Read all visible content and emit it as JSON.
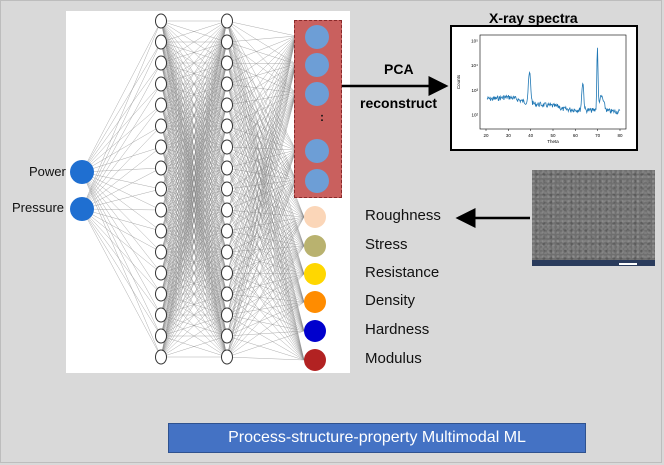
{
  "inputs": [
    {
      "label": "Power"
    },
    {
      "label": "Pressure"
    }
  ],
  "network": {
    "hidden_layers": 2,
    "nodes_per_layer": 17,
    "latent_nodes": 6,
    "latent_ellipsis": ":"
  },
  "arrows": {
    "pca_label": "PCA",
    "reconstruct_label": "reconstruct"
  },
  "xray": {
    "title": "X-ray spectra",
    "x_label": "Theta",
    "y_label": "Counts",
    "x_ticks": [
      "20",
      "30",
      "40",
      "50",
      "60",
      "70",
      "80"
    ],
    "y_ticks": [
      "10²",
      "10³",
      "10⁴",
      "10⁵"
    ]
  },
  "properties": [
    {
      "label": "Roughness",
      "color": "#fbd6b8"
    },
    {
      "label": "Stress",
      "color": "#b9b26f"
    },
    {
      "label": "Resistance",
      "color": "#ffd700"
    },
    {
      "label": "Density",
      "color": "#ff8c00"
    },
    {
      "label": "Hardness",
      "color": "#0000cd"
    },
    {
      "label": "Modulus",
      "color": "#b22222"
    }
  ],
  "colors": {
    "input_node": "#1f6fd1",
    "latent_node": "#6d9ed6",
    "latent_box": "#c9605e",
    "banner": "#4472c4",
    "spectrum_line": "#1f77b4"
  },
  "banner": {
    "title": "Process-structure-property Multimodal ML"
  }
}
